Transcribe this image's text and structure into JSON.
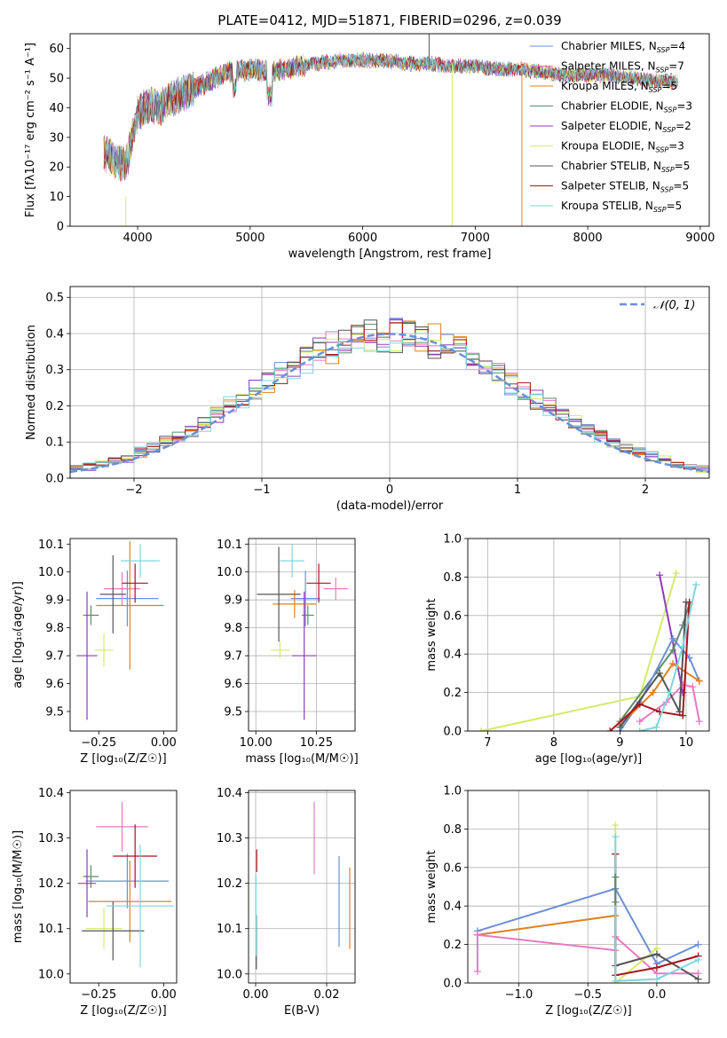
{
  "title": "PLATE=0412, MJD=51871, FIBERID=0296, z=0.039",
  "colors": {
    "Chabrier MILES": "#6b8fd8",
    "Salpeter MILES": "#e779c1",
    "Kroupa MILES": "#e2801e",
    "Chabrier ELODIE": "#5e8c6a",
    "Salpeter ELODIE": "#8e3bb8",
    "Kroupa ELODIE": "#d4ea6b",
    "Chabrier STELIB": "#555555",
    "Salpeter STELIB": "#a8131b",
    "Kroupa STELIB": "#7ed6df"
  },
  "chart_data": [
    {
      "type": "line",
      "panel": "spectrum",
      "xlabel": "wavelength [Angstrom, rest frame]",
      "ylabel": "Flux [fλ10⁻¹⁷ erg cm⁻² s⁻¹ A⁻¹]",
      "xlim": [
        3400,
        9080
      ],
      "ylim": [
        0,
        65
      ],
      "xticks": [
        4000,
        5000,
        6000,
        7000,
        8000,
        9000
      ],
      "yticks": [
        0,
        10,
        20,
        30,
        40,
        50,
        60
      ],
      "grid": false,
      "legend_position": "top-right",
      "continuum": {
        "x": [
          3700,
          3800,
          3900,
          3950,
          4000,
          4100,
          4200,
          4300,
          4400,
          4600,
          4800,
          5000,
          5200,
          5400,
          5600,
          5800,
          6000,
          6200,
          6400,
          6600,
          6800,
          7000,
          7200,
          7400,
          7600,
          7800,
          8000,
          8200,
          8400,
          8600,
          8800
        ],
        "y": [
          25,
          22,
          21,
          30,
          38,
          41,
          40,
          43,
          45,
          48,
          52,
          53,
          52,
          54,
          55,
          56,
          56,
          56,
          55,
          55,
          54,
          54,
          53,
          53,
          52,
          51,
          51,
          51,
          50,
          49,
          49
        ]
      },
      "series": [
        {
          "name": "Chabrier MILES",
          "nssp": "4"
        },
        {
          "name": "Salpeter MILES",
          "nssp": "7"
        },
        {
          "name": "Kroupa MILES",
          "nssp": "5"
        },
        {
          "name": "Chabrier ELODIE",
          "nssp": "3"
        },
        {
          "name": "Salpeter ELODIE",
          "nssp": "2"
        },
        {
          "name": "Kroupa ELODIE",
          "nssp": "3"
        },
        {
          "name": "Chabrier STELIB",
          "nssp": "5"
        },
        {
          "name": "Salpeter STELIB",
          "nssp": "5"
        },
        {
          "name": "Kroupa STELIB",
          "nssp": "5"
        }
      ],
      "spikes": [
        {
          "series": "Kroupa ELODIE",
          "x": 3895,
          "y_from": 10,
          "y_to": 0
        },
        {
          "series": "Kroupa ELODIE",
          "x": 6795,
          "y_from": 55,
          "y_to": 0
        },
        {
          "series": "Kroupa MILES",
          "x": 7415,
          "y_from": 53,
          "y_to": 0
        },
        {
          "series": "Chabrier STELIB",
          "x": 6590,
          "y_from": 55,
          "y_to": 65
        }
      ]
    },
    {
      "type": "histogram",
      "panel": "residuals",
      "xlabel": "(data-model)/error",
      "ylabel": "Normed distribution",
      "xlim": [
        -2.5,
        2.5
      ],
      "ylim": [
        0,
        0.53
      ],
      "xticks": [
        -2,
        -1,
        0,
        1,
        2
      ],
      "yticks": [
        0.0,
        0.1,
        0.2,
        0.3,
        0.4,
        0.5
      ],
      "grid": true,
      "reference_curve": "𝒩(0, 1)",
      "legend_position": "top-right",
      "bin_width": 0.1
    },
    {
      "type": "scatter",
      "panel": "age-vs-Z",
      "xlabel": "Z [log₁₀(Z/Z☉)]",
      "ylabel": "age  [log₁₀(age/yr)]",
      "xlim": [
        -0.36,
        0.05
      ],
      "ylim": [
        9.43,
        10.12
      ],
      "xticks": [
        -0.25,
        0.0
      ],
      "yticks": [
        9.5,
        9.6,
        9.7,
        9.8,
        9.9,
        10.0,
        10.1
      ],
      "grid": false,
      "points": [
        {
          "series": "Chabrier MILES",
          "x": -0.14,
          "xerr": 0.12,
          "y": 9.905,
          "yerr": 0.1
        },
        {
          "series": "Salpeter MILES",
          "x": -0.16,
          "xerr": 0.07,
          "y": 9.94,
          "yerr": 0.06
        },
        {
          "series": "Kroupa MILES",
          "x": -0.13,
          "xerr": 0.13,
          "y": 9.88,
          "yerr": 0.23
        },
        {
          "series": "Chabrier ELODIE",
          "x": -0.28,
          "xerr": 0.03,
          "y": 9.845,
          "yerr": 0.035
        },
        {
          "series": "Salpeter ELODIE",
          "x": -0.295,
          "xerr": 0.04,
          "y": 9.7,
          "yerr": 0.23
        },
        {
          "series": "Kroupa ELODIE",
          "x": -0.23,
          "xerr": 0.035,
          "y": 9.72,
          "yerr": 0.06
        },
        {
          "series": "Chabrier STELIB",
          "x": -0.195,
          "xerr": 0.05,
          "y": 9.92,
          "yerr": 0.14
        },
        {
          "series": "Salpeter STELIB",
          "x": -0.11,
          "xerr": 0.05,
          "y": 9.96,
          "yerr": 0.07
        },
        {
          "series": "Kroupa STELIB",
          "x": -0.09,
          "xerr": 0.075,
          "y": 10.04,
          "yerr": 0.06
        }
      ]
    },
    {
      "type": "scatter",
      "panel": "age-vs-mass",
      "xlabel": "mass [log₁₀(M/M☉)]",
      "ylabel": "",
      "xlim": [
        9.97,
        10.41
      ],
      "ylim": [
        9.43,
        10.12
      ],
      "xticks": [
        10.0,
        10.25
      ],
      "yticks": [
        9.5,
        9.6,
        9.7,
        9.8,
        9.9,
        10.0,
        10.1
      ],
      "grid": true,
      "points": [
        {
          "series": "Chabrier MILES",
          "x": 10.205,
          "xerr": 0.06,
          "y": 9.905,
          "yerr": 0.1
        },
        {
          "series": "Salpeter MILES",
          "x": 10.33,
          "xerr": 0.05,
          "y": 9.94,
          "yerr": 0.04
        },
        {
          "series": "Kroupa MILES",
          "x": 10.16,
          "xerr": 0.09,
          "y": 9.885,
          "yerr": 0.05
        },
        {
          "series": "Chabrier ELODIE",
          "x": 10.215,
          "xerr": 0.025,
          "y": 9.845,
          "yerr": 0.035
        },
        {
          "series": "Salpeter ELODIE",
          "x": 10.2,
          "xerr": 0.05,
          "y": 9.7,
          "yerr": 0.23
        },
        {
          "series": "Kroupa ELODIE",
          "x": 10.1,
          "xerr": 0.04,
          "y": 9.72,
          "yerr": 0.03
        },
        {
          "series": "Chabrier STELIB",
          "x": 10.095,
          "xerr": 0.09,
          "y": 9.92,
          "yerr": 0.17
        },
        {
          "series": "Salpeter STELIB",
          "x": 10.26,
          "xerr": 0.05,
          "y": 9.96,
          "yerr": 0.07
        },
        {
          "series": "Kroupa STELIB",
          "x": 10.15,
          "xerr": 0.05,
          "y": 10.04,
          "yerr": 0.06
        }
      ]
    },
    {
      "type": "line",
      "panel": "mass-weight-vs-age",
      "xlabel": "age  [log₁₀(age/yr)]",
      "ylabel": "mass weight",
      "xlim": [
        6.7,
        10.35
      ],
      "ylim": [
        0,
        1.0
      ],
      "xticks": [
        7,
        8,
        9,
        10
      ],
      "yticks": [
        0.0,
        0.2,
        0.4,
        0.6,
        0.8,
        1.0
      ],
      "grid": true,
      "series": [
        {
          "name": "Kroupa ELODIE",
          "x": [
            6.9,
            9.3,
            9.85
          ],
          "y": [
            0.0,
            0.18,
            0.82
          ]
        },
        {
          "name": "Salpeter ELODIE",
          "x": [
            9.6,
            9.95
          ],
          "y": [
            0.81,
            0.2
          ]
        },
        {
          "name": "Chabrier ELODIE",
          "x": [
            9.0,
            9.8,
            9.95,
            10.05
          ],
          "y": [
            0.05,
            0.42,
            0.55,
            0.66
          ]
        },
        {
          "name": "Chabrier MILES",
          "x": [
            9.0,
            9.3,
            9.8,
            10.05,
            10.2
          ],
          "y": [
            0.0,
            0.15,
            0.48,
            0.38,
            0.26
          ]
        },
        {
          "name": "Kroupa MILES",
          "x": [
            9.0,
            9.5,
            9.8,
            10.2
          ],
          "y": [
            0.03,
            0.2,
            0.35,
            0.26
          ]
        },
        {
          "name": "Salpeter MILES",
          "x": [
            9.3,
            9.7,
            9.95,
            10.1,
            10.2
          ],
          "y": [
            0.05,
            0.15,
            0.24,
            0.23,
            0.05
          ]
        },
        {
          "name": "Chabrier STELIB",
          "x": [
            9.0,
            9.6,
            9.9,
            10.0
          ],
          "y": [
            0.02,
            0.3,
            0.1,
            0.67
          ]
        },
        {
          "name": "Salpeter STELIB",
          "x": [
            8.85,
            9.3,
            9.6,
            9.95,
            10.05
          ],
          "y": [
            0.0,
            0.14,
            0.1,
            0.08,
            0.67
          ]
        },
        {
          "name": "Kroupa STELIB",
          "x": [
            9.3,
            9.55,
            9.75,
            9.95,
            10.15
          ],
          "y": [
            0.0,
            0.02,
            0.2,
            0.44,
            0.76
          ]
        }
      ]
    },
    {
      "type": "scatter",
      "panel": "mass-vs-Z",
      "xlabel": "Z [log₁₀(Z/Z☉)]",
      "ylabel": "mass [log₁₀(M/M☉)]",
      "xlim": [
        -0.36,
        0.05
      ],
      "ylim": [
        9.98,
        10.405
      ],
      "xticks": [
        -0.25,
        0.0
      ],
      "yticks": [
        10.0,
        10.1,
        10.2,
        10.3,
        10.4
      ],
      "grid": false,
      "points": [
        {
          "series": "Chabrier MILES",
          "x": -0.14,
          "xerr": 0.16,
          "y": 10.205,
          "yerr": 0.06
        },
        {
          "series": "Salpeter MILES",
          "x": -0.16,
          "xerr": 0.1,
          "y": 10.325,
          "yerr": 0.055
        },
        {
          "series": "Kroupa MILES",
          "x": -0.13,
          "xerr": 0.16,
          "y": 10.16,
          "yerr": 0.09
        },
        {
          "series": "Chabrier ELODIE",
          "x": -0.28,
          "xerr": 0.03,
          "y": 10.215,
          "yerr": 0.025
        },
        {
          "series": "Salpeter ELODIE",
          "x": -0.295,
          "xerr": 0.035,
          "y": 10.2,
          "yerr": 0.075
        },
        {
          "series": "Kroupa ELODIE",
          "x": -0.23,
          "xerr": 0.07,
          "y": 10.1,
          "yerr": 0.045
        },
        {
          "series": "Chabrier STELIB",
          "x": -0.195,
          "xerr": 0.12,
          "y": 10.095,
          "yerr": 0.065
        },
        {
          "series": "Salpeter STELIB",
          "x": -0.11,
          "xerr": 0.085,
          "y": 10.26,
          "yerr": 0.07
        },
        {
          "series": "Kroupa STELIB",
          "x": -0.09,
          "xerr": 0.13,
          "y": 10.15,
          "yerr": 0.135
        }
      ]
    },
    {
      "type": "scatter",
      "panel": "mass-vs-ebv",
      "xlabel": "E(B-V)",
      "ylabel": "",
      "xlim": [
        -0.002,
        0.028
      ],
      "ylim": [
        9.98,
        10.405
      ],
      "xticks": [
        0.0,
        0.02
      ],
      "yticks": [
        10.0,
        10.1,
        10.2,
        10.3,
        10.4
      ],
      "grid": true,
      "points": [
        {
          "series": "Chabrier MILES",
          "x": 0.0235,
          "xerr": 0.0,
          "y": 10.16,
          "yerr": 0.1
        },
        {
          "series": "Salpeter MILES",
          "x": 0.0165,
          "xerr": 0.0,
          "y": 10.3,
          "yerr": 0.08
        },
        {
          "series": "Kroupa MILES",
          "x": 0.0265,
          "xerr": 0.0,
          "y": 10.145,
          "yerr": 0.09
        },
        {
          "series": "Salpeter STELIB",
          "x": 0.0003,
          "xerr": 0.0,
          "y": 10.25,
          "yerr": 0.025
        },
        {
          "series": "Chabrier STELIB",
          "x": 0.0002,
          "xerr": 0.0,
          "y": 10.07,
          "yerr": 0.06
        },
        {
          "series": "Kroupa STELIB",
          "x": 0.0001,
          "xerr": 0.0,
          "y": 10.13,
          "yerr": 0.09
        }
      ]
    },
    {
      "type": "line",
      "panel": "mass-weight-vs-Z",
      "xlabel": "Z [log₁₀(Z/Z☉)]",
      "ylabel": "mass weight",
      "xlim": [
        -1.37,
        0.38
      ],
      "ylim": [
        0,
        1.0
      ],
      "xticks": [
        -1.0,
        -0.5,
        0.0
      ],
      "yticks": [
        0.0,
        0.2,
        0.4,
        0.6,
        0.8,
        1.0
      ],
      "grid": true,
      "series": [
        {
          "name": "Chabrier MILES",
          "x": [
            -1.3,
            -0.3,
            0.0,
            0.3
          ],
          "y": [
            0.27,
            0.49,
            0.1,
            0.2
          ]
        },
        {
          "name": "Kroupa MILES",
          "x": [
            -1.3,
            -0.3
          ],
          "y": [
            0.25,
            0.35
          ]
        },
        {
          "name": "Salpeter MILES",
          "x": [
            -1.3,
            -1.3,
            -0.3,
            -0.3,
            0.0,
            0.3
          ],
          "y": [
            0.06,
            0.25,
            0.17,
            0.24,
            0.05,
            0.05
          ]
        },
        {
          "name": "Kroupa ELODIE",
          "x": [
            -0.3,
            -0.3,
            0.0
          ],
          "y": [
            0.82,
            0.0,
            0.18
          ]
        },
        {
          "name": "Chabrier STELIB",
          "x": [
            -0.3,
            -0.3,
            0.0,
            0.3
          ],
          "y": [
            0.67,
            0.09,
            0.15,
            0.02
          ]
        },
        {
          "name": "Salpeter STELIB",
          "x": [
            -0.3,
            -0.3,
            0.0,
            0.3
          ],
          "y": [
            0.67,
            0.04,
            0.08,
            0.14
          ]
        },
        {
          "name": "Kroupa STELIB",
          "x": [
            -0.3,
            -0.3,
            0.0,
            0.3
          ],
          "y": [
            0.76,
            0.01,
            0.02,
            0.12
          ]
        },
        {
          "name": "Chabrier ELODIE",
          "x": [
            -0.3,
            -0.3
          ],
          "y": [
            0.55,
            0.42
          ]
        }
      ]
    }
  ]
}
